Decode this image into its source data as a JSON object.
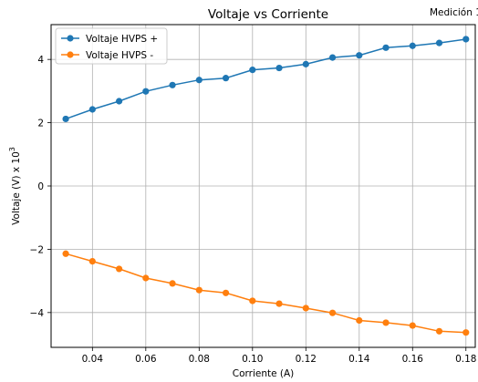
{
  "chart_data": {
    "type": "line",
    "title": "Voltaje vs Corriente",
    "corner_text": "Medición 1",
    "xlabel": "Corriente (A)",
    "ylabel": "Voltaje (V) x 10",
    "ylabel_exponent": "3",
    "xlim": [
      0.0245,
      0.1835
    ],
    "ylim": [
      -5.1,
      5.1
    ],
    "xticks": [
      0.04,
      0.06,
      0.08,
      0.1,
      0.12,
      0.14,
      0.16,
      0.18
    ],
    "xtick_labels": [
      "0.04",
      "0.06",
      "0.08",
      "0.10",
      "0.12",
      "0.14",
      "0.16",
      "0.18"
    ],
    "yticks": [
      -4,
      -2,
      0,
      2,
      4
    ],
    "ytick_labels": [
      "−4",
      "−2",
      "0",
      "2",
      "4"
    ],
    "grid": true,
    "legend_position": "top-left",
    "x": [
      0.03,
      0.04,
      0.05,
      0.06,
      0.07,
      0.08,
      0.09,
      0.1,
      0.11,
      0.12,
      0.13,
      0.14,
      0.15,
      0.16,
      0.17,
      0.18
    ],
    "series": [
      {
        "name": "Voltaje HVPS +",
        "color": "#1f77b4",
        "values": [
          2.12,
          2.42,
          2.68,
          2.99,
          3.19,
          3.35,
          3.41,
          3.67,
          3.73,
          3.85,
          4.06,
          4.13,
          4.37,
          4.43,
          4.52,
          4.64
        ]
      },
      {
        "name": "Voltaje HVPS -",
        "color": "#ff7f0e",
        "values": [
          -2.14,
          -2.38,
          -2.62,
          -2.91,
          -3.08,
          -3.29,
          -3.38,
          -3.63,
          -3.72,
          -3.86,
          -4.01,
          -4.25,
          -4.32,
          -4.41,
          -4.59,
          -4.63
        ]
      }
    ]
  }
}
